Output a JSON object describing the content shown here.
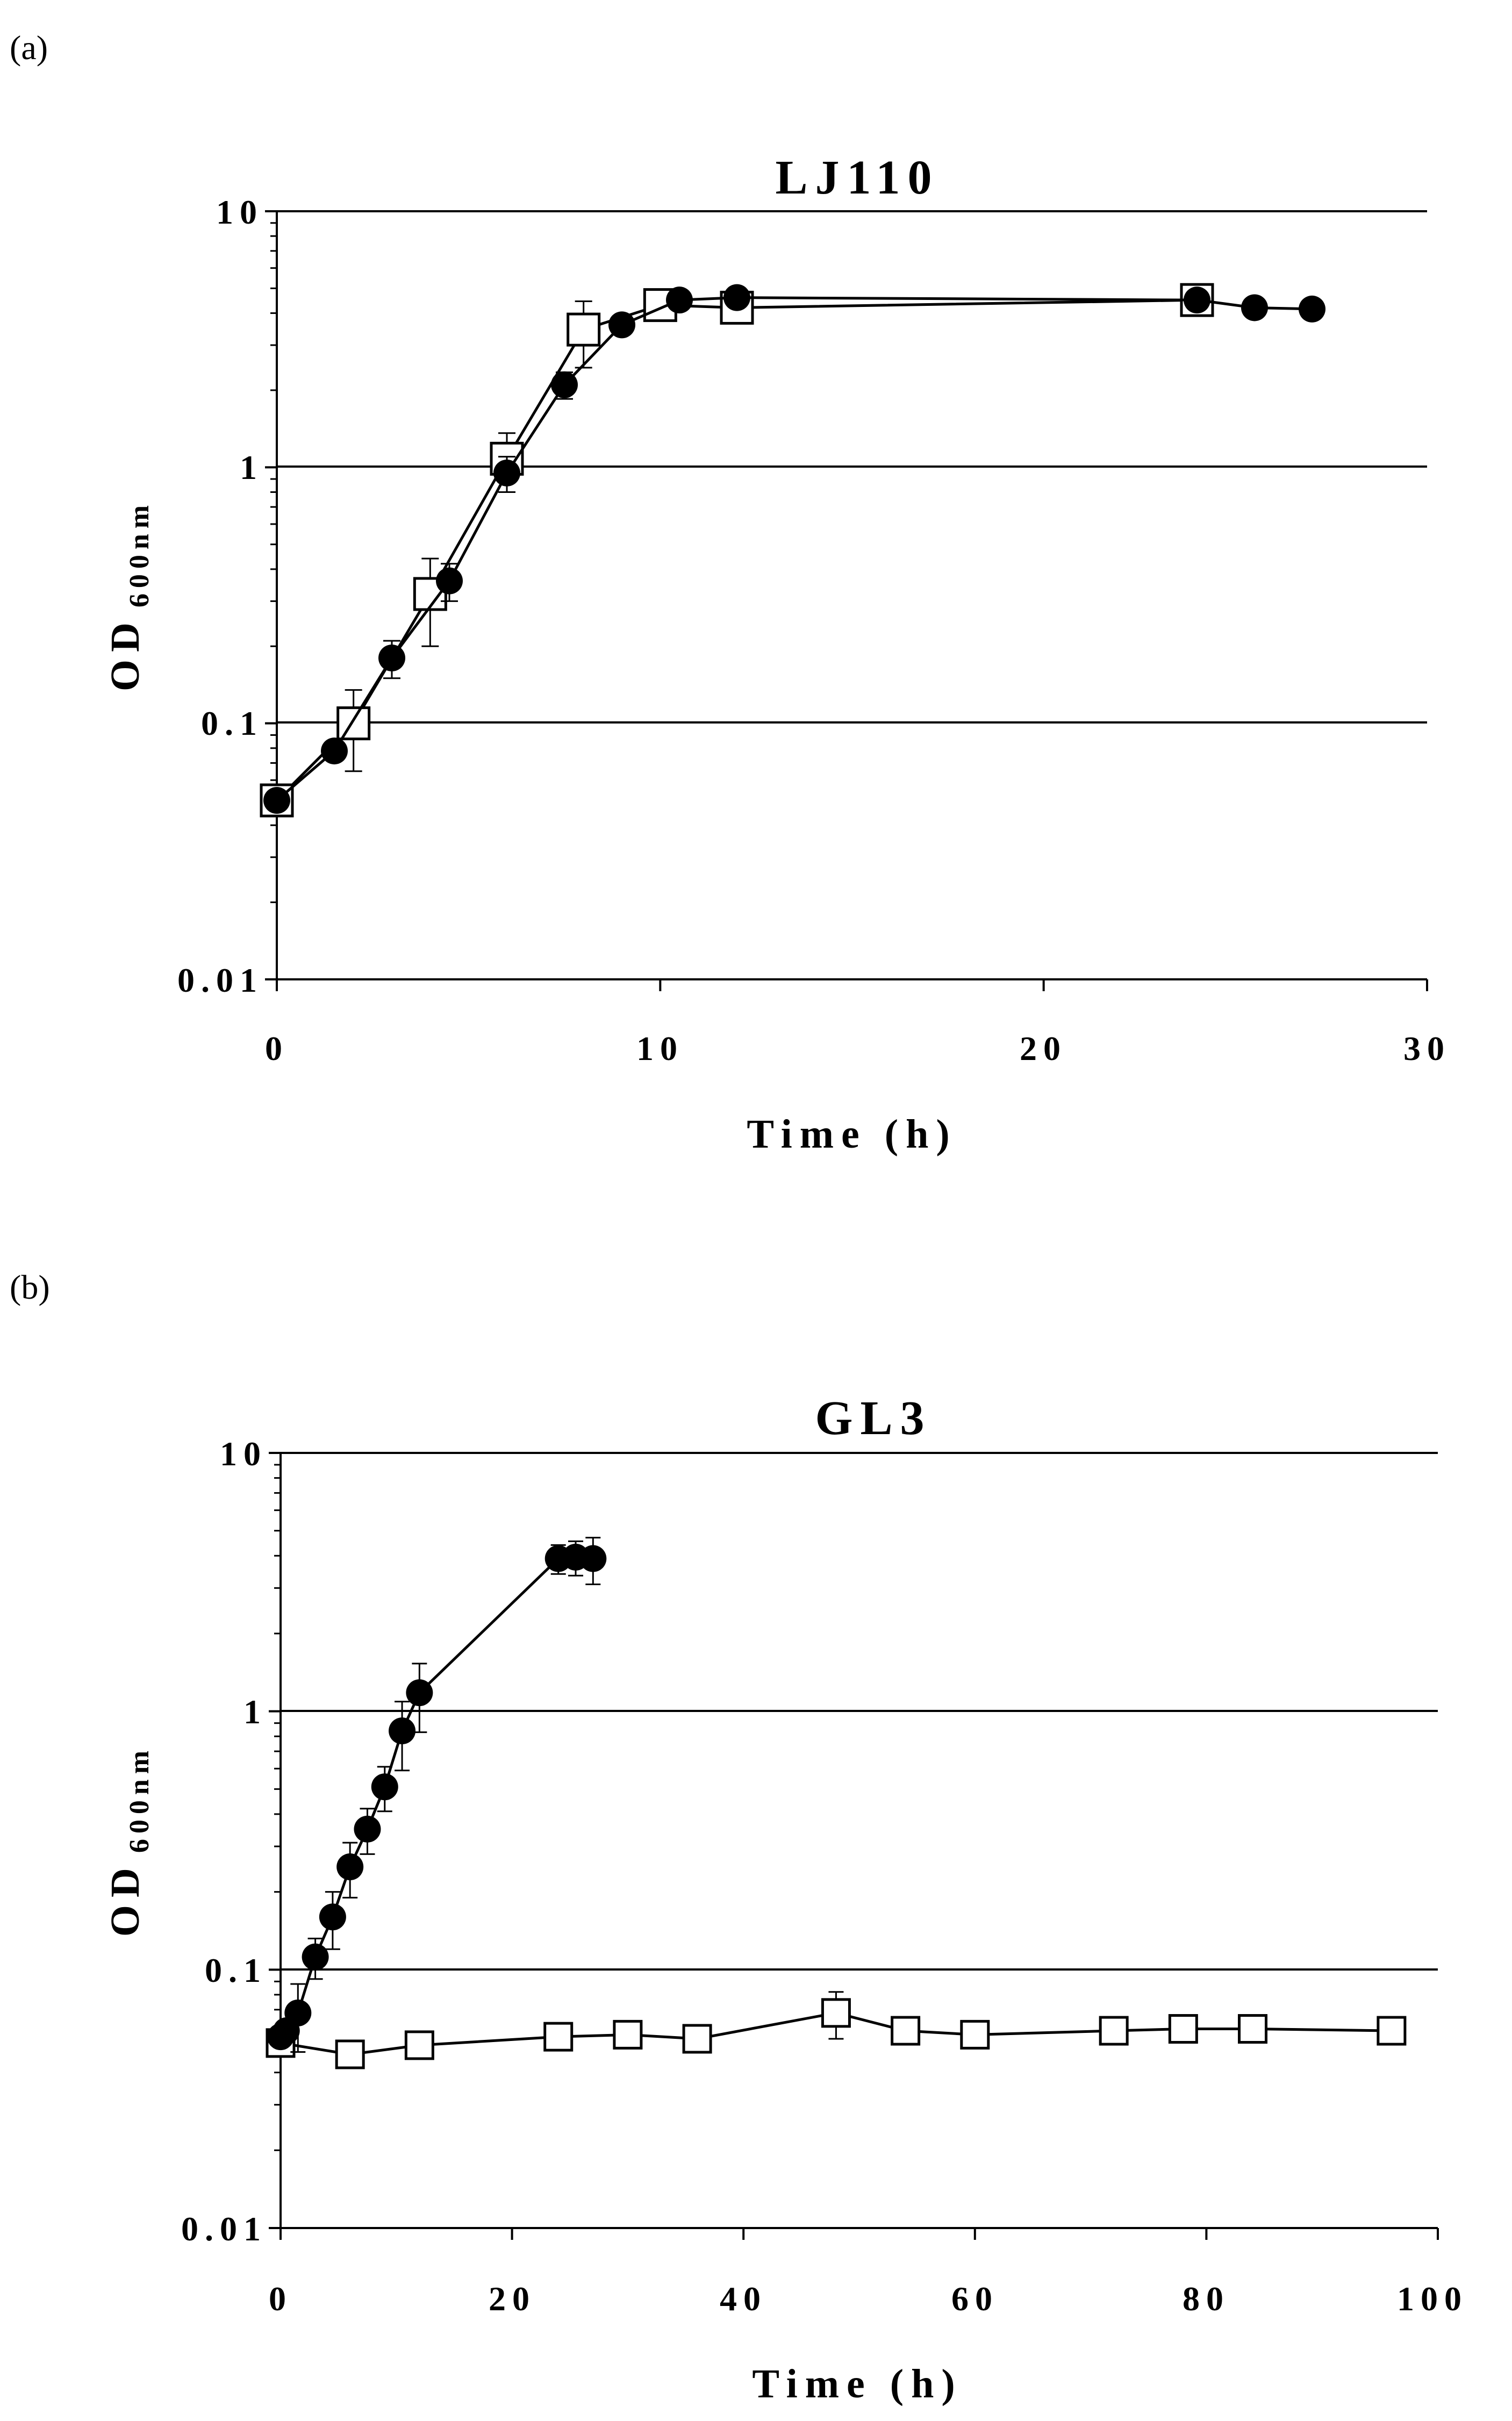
{
  "chart_data": [
    {
      "type": "line",
      "panel_label": "(a)",
      "title": "LJ110",
      "xlabel": "Time (h)",
      "ylabel": "OD",
      "ylabel_subscript": "600nm",
      "xlim": [
        0,
        30
      ],
      "ylim": [
        0.01,
        10
      ],
      "yscale": "log",
      "xticks": [
        0,
        10,
        20,
        30
      ],
      "xtick_labels": [
        "0",
        "10",
        "20",
        "30"
      ],
      "yticks": [
        0.01,
        0.1,
        1,
        10
      ],
      "ytick_labels": [
        "0.01",
        "0.1",
        "1",
        "10"
      ],
      "grid": "horizontal major",
      "series": [
        {
          "name": "open squares",
          "marker": "square-open",
          "x": [
            0,
            2,
            4,
            6,
            8,
            10,
            12,
            24
          ],
          "y": [
            0.05,
            0.1,
            0.32,
            1.08,
            3.45,
            4.3,
            4.2,
            4.5
          ],
          "err": [
            0.003,
            0.035,
            0.12,
            0.28,
            1.0,
            0.4,
            0.3,
            0.4
          ]
        },
        {
          "name": "filled circles",
          "marker": "circle-filled",
          "x": [
            0,
            1.5,
            3,
            4.5,
            6,
            7.5,
            9,
            10.5,
            12,
            24,
            25.5,
            27
          ],
          "y": [
            0.05,
            0.078,
            0.18,
            0.36,
            0.95,
            2.1,
            3.6,
            4.5,
            4.6,
            4.5,
            4.2,
            4.15
          ],
          "err": [
            0.003,
            0.005,
            0.03,
            0.06,
            0.15,
            0.25,
            0.25,
            0.3,
            0.3,
            0.2,
            0.2,
            0.2
          ]
        }
      ]
    },
    {
      "type": "line",
      "panel_label": "(b)",
      "title": "GL3",
      "xlabel": "Time (h)",
      "ylabel": "OD",
      "ylabel_subscript": "600nm",
      "xlim": [
        0,
        100
      ],
      "ylim": [
        0.01,
        10
      ],
      "yscale": "log",
      "xticks": [
        0,
        20,
        40,
        60,
        80,
        100
      ],
      "xtick_labels": [
        "0",
        "20",
        "40",
        "60",
        "80",
        "100"
      ],
      "yticks": [
        0.01,
        0.1,
        1,
        10
      ],
      "ytick_labels": [
        "0.01",
        "0.1",
        "1",
        "10"
      ],
      "grid": "horizontal major",
      "series": [
        {
          "name": "open squares",
          "marker": "square-open",
          "x": [
            0,
            6,
            12,
            24,
            30,
            36,
            48,
            54,
            60,
            72,
            78,
            84,
            96
          ],
          "y": [
            0.052,
            0.047,
            0.051,
            0.055,
            0.056,
            0.054,
            0.068,
            0.058,
            0.056,
            0.058,
            0.059,
            0.059,
            0.058
          ],
          "err": [
            0.006,
            0.004,
            0.004,
            0.004,
            0.004,
            0.004,
            0.014,
            0.005,
            0.004,
            0.004,
            0.004,
            0.004,
            0.004
          ]
        },
        {
          "name": "filled circles",
          "marker": "circle-filled",
          "x": [
            0,
            0.5,
            1.5,
            3,
            4.5,
            6,
            7.5,
            9,
            10.5,
            12,
            24,
            25.5,
            27
          ],
          "y": [
            0.055,
            0.058,
            0.068,
            0.112,
            0.16,
            0.25,
            0.35,
            0.51,
            0.84,
            1.18,
            3.9,
            3.95,
            3.9
          ],
          "err": [
            0.004,
            0.005,
            0.02,
            0.02,
            0.04,
            0.06,
            0.07,
            0.1,
            0.25,
            0.35,
            0.5,
            0.6,
            0.8
          ]
        }
      ]
    }
  ]
}
